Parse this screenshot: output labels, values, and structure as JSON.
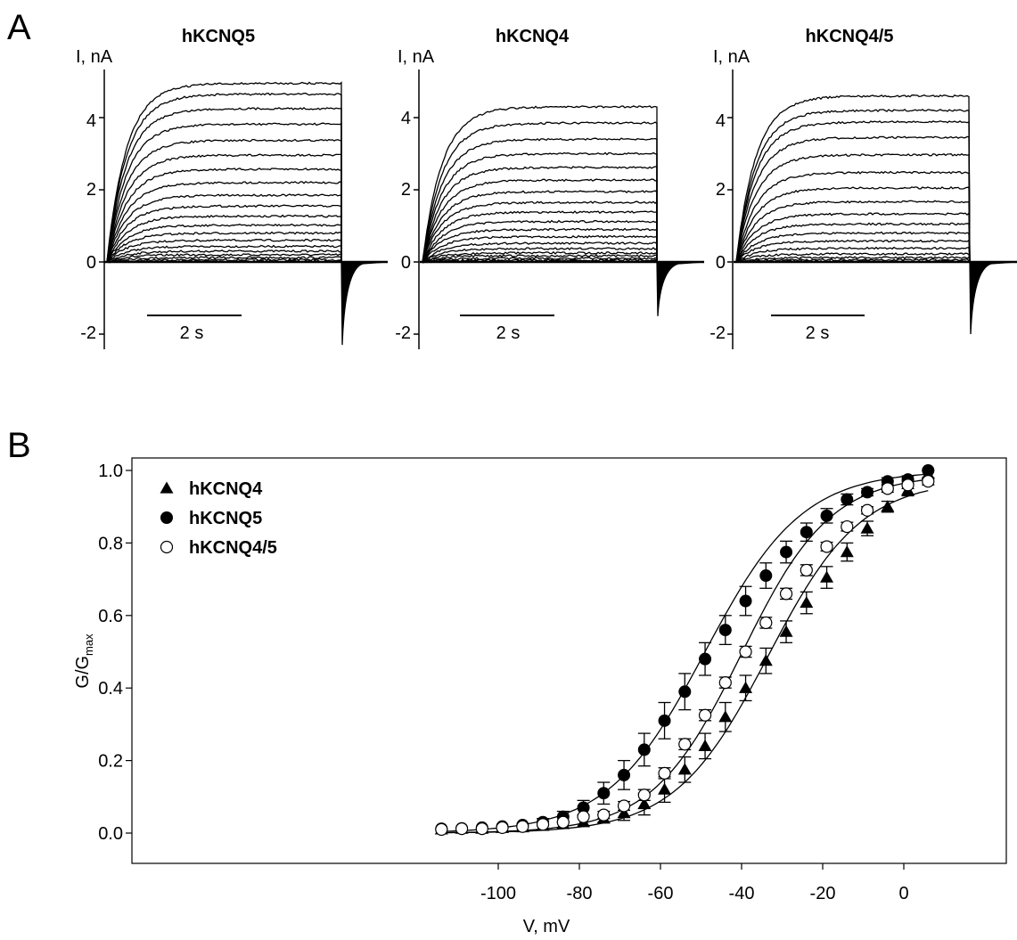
{
  "panel_a": {
    "letter": "A",
    "traces": [
      {
        "title": "hKCNQ5",
        "unit": "I, nA",
        "yticks": [
          "4",
          "2",
          "0",
          "-2"
        ],
        "scale_label": "2 s",
        "steady": [
          0.02,
          0.06,
          0.12,
          0.2,
          0.3,
          0.43,
          0.6,
          0.8,
          1.02,
          1.27,
          1.55,
          1.85,
          2.2,
          2.57,
          2.96,
          3.37,
          3.82,
          4.25,
          4.65,
          4.95
        ],
        "tail_min": -2.3
      },
      {
        "title": "hKCNQ4",
        "unit": "I, nA",
        "yticks": [
          "4",
          "2",
          "0",
          "-2"
        ],
        "scale_label": "2 s",
        "steady": [
          0.02,
          0.05,
          0.1,
          0.17,
          0.25,
          0.37,
          0.52,
          0.7,
          0.9,
          1.12,
          1.38,
          1.65,
          1.95,
          2.27,
          2.62,
          3.0,
          3.4,
          3.85,
          4.3
        ],
        "tail_min": -1.5
      },
      {
        "title": "hKCNQ4/5",
        "unit": "I, nA",
        "yticks": [
          "4",
          "2",
          "0",
          "-2"
        ],
        "scale_label": "2 s",
        "steady": [
          0.02,
          0.06,
          0.12,
          0.22,
          0.38,
          0.58,
          0.8,
          1.05,
          1.33,
          1.67,
          2.05,
          2.48,
          2.97,
          3.45,
          3.88,
          4.2,
          4.6
        ],
        "tail_min": -2.0
      }
    ]
  },
  "panel_b": {
    "letter": "B",
    "chart_data": {
      "type": "scatter",
      "title": "",
      "xlabel": "V, mV",
      "ylabel_main": "G/G",
      "ylabel_sub": "max",
      "xlim": [
        -119,
        9
      ],
      "ylim": [
        -0.11,
        1.11
      ],
      "xticks": [
        -100,
        -80,
        -60,
        -40,
        -20,
        0
      ],
      "yticks": [
        0.0,
        0.2,
        0.4,
        0.6,
        0.8,
        1.0
      ],
      "ytick_labels": [
        "0.0",
        "0.2",
        "0.4",
        "0.6",
        "0.8",
        "1.0"
      ],
      "legend_position": "top-left",
      "x": [
        -114,
        -109,
        -104,
        -99,
        -94,
        -89,
        -84,
        -79,
        -74,
        -69,
        -64,
        -59,
        -54,
        -49,
        -44,
        -39,
        -34,
        -29,
        -24,
        -19,
        -14,
        -9,
        -4,
        1,
        6
      ],
      "series": [
        {
          "name": "hKCNQ4",
          "marker": "triangle-filled",
          "values": [
            0.01,
            0.012,
            0.012,
            0.014,
            0.016,
            0.02,
            0.025,
            0.03,
            0.04,
            0.055,
            0.08,
            0.12,
            0.175,
            0.24,
            0.32,
            0.4,
            0.475,
            0.555,
            0.635,
            0.705,
            0.775,
            0.84,
            0.9,
            0.945,
            0.99
          ],
          "errors": [
            0.005,
            0.005,
            0.005,
            0.005,
            0.005,
            0.005,
            0.006,
            0.008,
            0.01,
            0.02,
            0.03,
            0.035,
            0.035,
            0.035,
            0.04,
            0.035,
            0.035,
            0.03,
            0.03,
            0.03,
            0.025,
            0.02,
            0.015,
            0.015,
            0.01
          ],
          "fit": {
            "v_half": -33.5,
            "slope": 11.5,
            "max": 0.975
          }
        },
        {
          "name": "hKCNQ5",
          "marker": "circle-filled",
          "values": [
            0.012,
            0.013,
            0.015,
            0.018,
            0.022,
            0.03,
            0.045,
            0.07,
            0.11,
            0.16,
            0.23,
            0.31,
            0.39,
            0.48,
            0.56,
            0.64,
            0.71,
            0.775,
            0.83,
            0.875,
            0.92,
            0.94,
            0.97,
            0.975,
            1.0
          ],
          "errors": [
            0.005,
            0.005,
            0.005,
            0.005,
            0.006,
            0.01,
            0.015,
            0.02,
            0.03,
            0.04,
            0.045,
            0.05,
            0.05,
            0.045,
            0.04,
            0.04,
            0.035,
            0.03,
            0.025,
            0.02,
            0.015,
            0.01,
            0.01,
            0.01,
            0.005
          ],
          "fit": {
            "v_half": -49.0,
            "slope": 12.0,
            "max": 1.0
          }
        },
        {
          "name": "hKCNQ4/5",
          "marker": "circle-open",
          "values": [
            0.01,
            0.012,
            0.012,
            0.015,
            0.018,
            0.024,
            0.03,
            0.045,
            0.05,
            0.075,
            0.105,
            0.165,
            0.245,
            0.325,
            0.415,
            0.5,
            0.58,
            0.66,
            0.725,
            0.79,
            0.845,
            0.89,
            0.95,
            0.96,
            0.97
          ],
          "errors": [
            0.005,
            0.005,
            0.005,
            0.005,
            0.005,
            0.005,
            0.006,
            0.008,
            0.01,
            0.012,
            0.015,
            0.015,
            0.015,
            0.015,
            0.015,
            0.015,
            0.015,
            0.015,
            0.015,
            0.012,
            0.012,
            0.01,
            0.01,
            0.01,
            0.01
          ],
          "fit": {
            "v_half": -40.0,
            "slope": 11.0,
            "max": 0.99
          }
        }
      ]
    }
  }
}
